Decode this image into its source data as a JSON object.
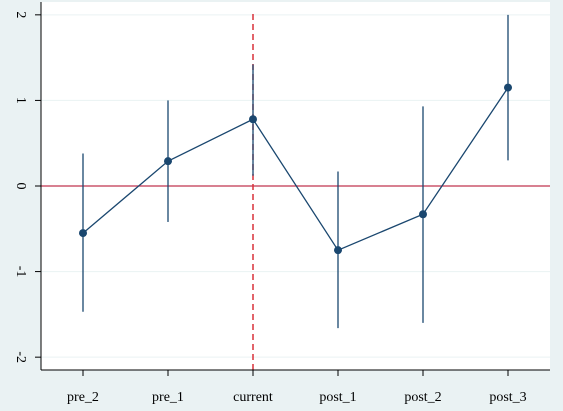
{
  "chart_data": {
    "type": "scatter",
    "subtype": "coefficient plot with confidence intervals",
    "title": "",
    "xlabel": "",
    "ylabel": "",
    "categories": [
      "pre_2",
      "pre_1",
      "current",
      "post_1",
      "post_2",
      "post_3"
    ],
    "estimates": [
      -0.55,
      0.29,
      0.78,
      -0.75,
      -0.33,
      1.15
    ],
    "ci_low": [
      -1.47,
      -0.42,
      0.12,
      -1.66,
      -1.6,
      0.3
    ],
    "ci_high": [
      0.38,
      1.0,
      1.42,
      0.17,
      0.93,
      2.0
    ],
    "ylim": [
      -2.15,
      2.15
    ],
    "yticks": [
      -2,
      -1,
      0,
      1,
      2
    ],
    "ytick_labels": [
      "-2",
      "-1",
      "0",
      "1",
      "2"
    ],
    "reference_line_y": 0,
    "reference_line_x_category": "current",
    "grid": "horizontal",
    "legend": "none",
    "colors": {
      "series": "#1a476f",
      "reference_y": "#c0344f",
      "reference_x": "#d9303a",
      "grid": "#eaf2f3",
      "plot_background": "#ffffff",
      "outer_background": "#eaf2f3"
    }
  }
}
